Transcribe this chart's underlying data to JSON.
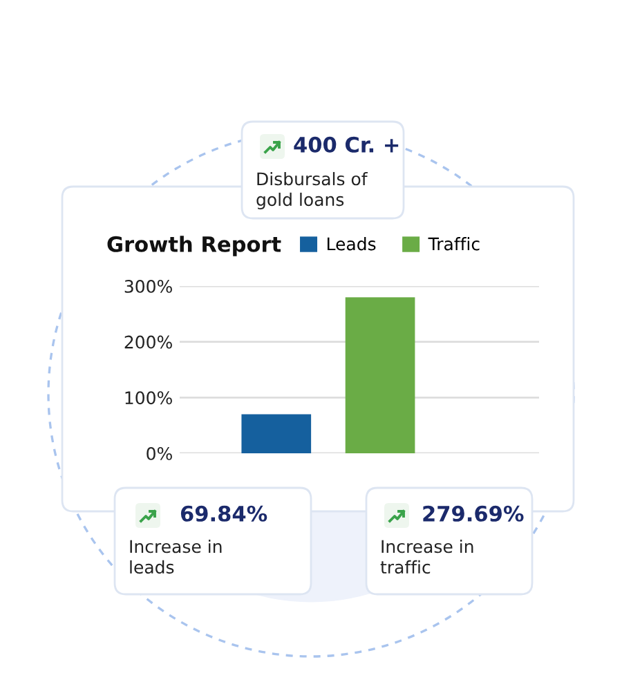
{
  "chart_data": {
    "type": "bar",
    "title": "Growth Report",
    "categories": [
      null,
      null
    ],
    "series": [
      {
        "name": "Leads",
        "color": "#15609e",
        "values": [
          70,
          null
        ]
      },
      {
        "name": "Traffic",
        "color": "#6aac46",
        "values": [
          null,
          280
        ]
      }
    ],
    "ylim": [
      0,
      300
    ],
    "yticks": [
      {
        "value": 0,
        "label": "0%"
      },
      {
        "value": 100,
        "label": "100%"
      },
      {
        "value": 200,
        "label": "200%"
      },
      {
        "value": 300,
        "label": "300%"
      }
    ],
    "grid": "y",
    "legend": "top right",
    "stacked": true,
    "annotations": [
      "400 Cr. +",
      "Disbursals of\ngold loans",
      "69.84%",
      "Increase in\nleads",
      "279.69%",
      "Increase in\ntraffic"
    ]
  }
}
